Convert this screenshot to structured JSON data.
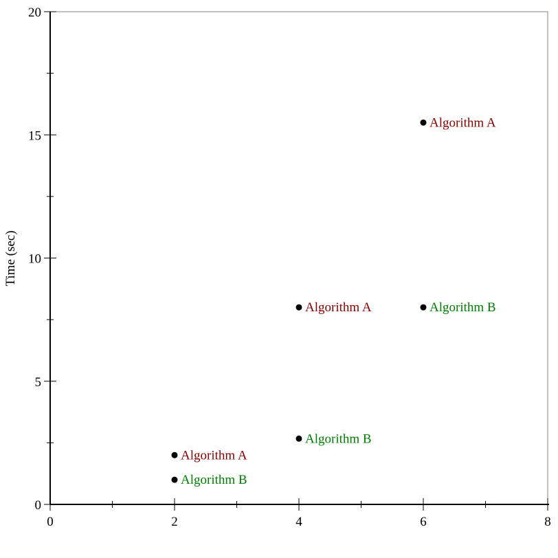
{
  "chart_data": {
    "type": "scatter",
    "title": "",
    "xlabel": "",
    "ylabel": "Time (sec)",
    "xlim": [
      0,
      8
    ],
    "ylim": [
      0,
      20
    ],
    "x_ticks": [
      0,
      2,
      4,
      6,
      8
    ],
    "y_ticks": [
      0,
      5,
      10,
      15,
      20
    ],
    "x_minor_ticks": [
      1,
      3,
      5,
      7
    ],
    "y_minor_ticks": [
      2.5,
      7.5,
      12.5,
      17.5
    ],
    "grid": false,
    "series": [
      {
        "label": "Algorithm A",
        "color": "#8b0000",
        "points": [
          {
            "x": 2,
            "y": 2
          },
          {
            "x": 4,
            "y": 8
          },
          {
            "x": 6,
            "y": 15.5
          }
        ]
      },
      {
        "label": "Algorithm B",
        "color": "#008000",
        "points": [
          {
            "x": 2,
            "y": 1
          },
          {
            "x": 4,
            "y": 2.67
          },
          {
            "x": 6,
            "y": 8
          }
        ]
      }
    ],
    "marker_color": "#000000"
  }
}
